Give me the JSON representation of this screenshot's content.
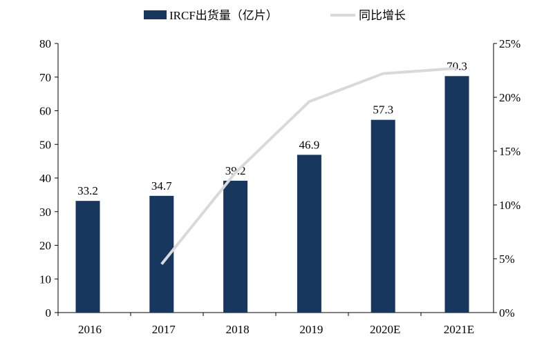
{
  "chart_data": {
    "type": "bar+line",
    "categories": [
      "2016",
      "2017",
      "2018",
      "2019",
      "2020E",
      "2021E"
    ],
    "series": [
      {
        "name": "IRCF出货量（亿片）",
        "type": "bar",
        "axis": "left",
        "values": [
          33.2,
          34.7,
          39.2,
          46.9,
          57.3,
          70.3
        ],
        "color": "#17375e",
        "data_labels": [
          "33.2",
          "34.7",
          "39.2",
          "46.9",
          "57.3",
          "70.3"
        ]
      },
      {
        "name": "同比增长",
        "type": "line",
        "axis": "right",
        "values": [
          null,
          4.5,
          13.0,
          19.6,
          22.2,
          22.7
        ],
        "color": "#d9d9d9"
      }
    ],
    "left_axis": {
      "ylim": [
        0,
        80
      ],
      "ticks": [
        "0",
        "10",
        "20",
        "30",
        "40",
        "50",
        "60",
        "70",
        "80"
      ]
    },
    "right_axis": {
      "ylim": [
        0,
        25
      ],
      "ticks": [
        "0%",
        "5%",
        "10%",
        "15%",
        "20%",
        "25%"
      ]
    },
    "legend": "top",
    "grid": false
  }
}
